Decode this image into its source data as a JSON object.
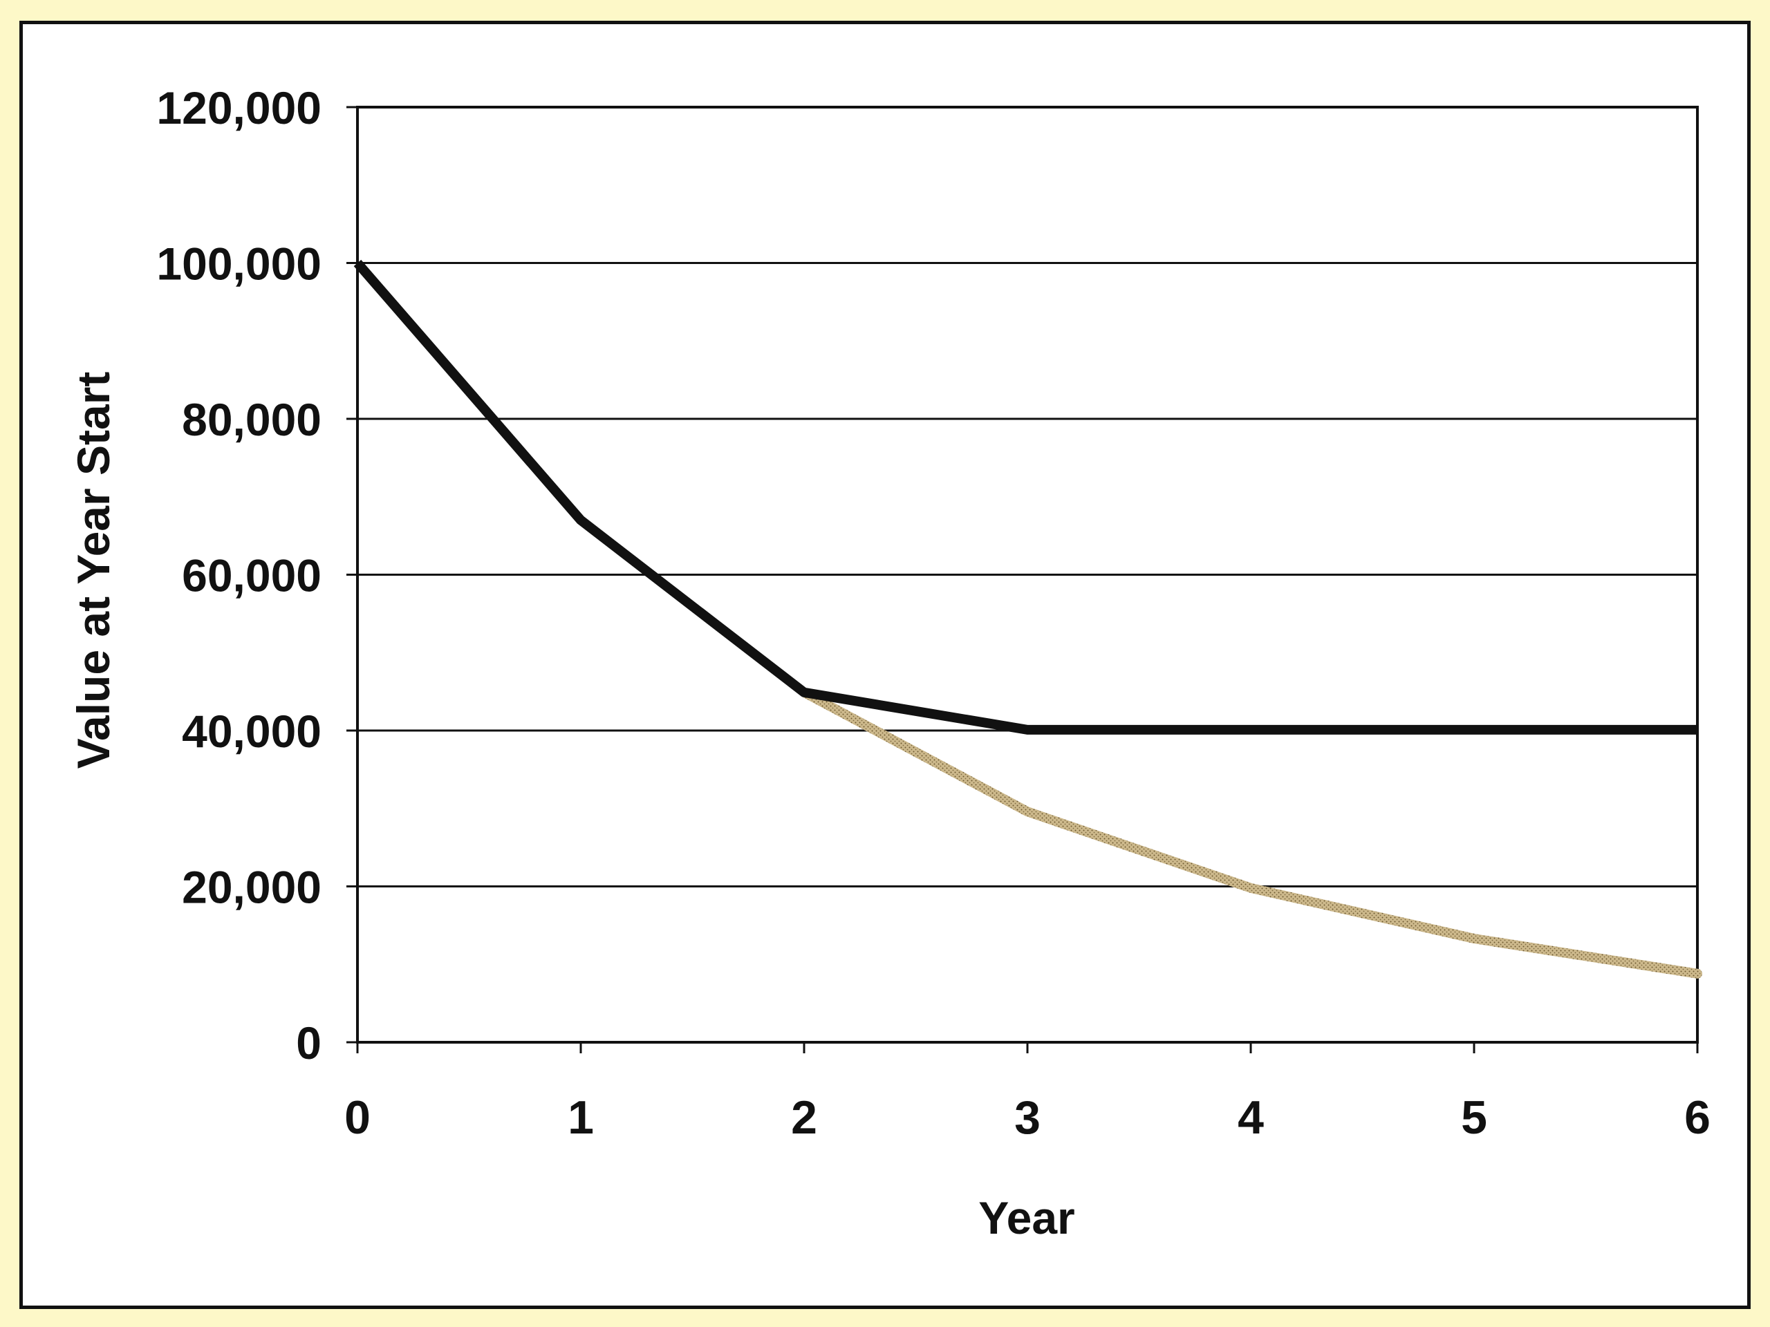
{
  "chart_data": {
    "type": "line",
    "xlabel": "Year",
    "ylabel": "Value at Year Start",
    "xlim": [
      0,
      6
    ],
    "ylim": [
      0,
      120000
    ],
    "x_ticks": [
      "0",
      "1",
      "2",
      "3",
      "4",
      "5",
      "6"
    ],
    "y_ticks": [
      "0",
      "20,000",
      "40,000",
      "60,000",
      "80,000",
      "100,000",
      "120,000"
    ],
    "grid": "horizontal",
    "legend": "none",
    "series": [
      {
        "x": [
          0,
          1,
          2,
          3,
          4,
          5,
          6
        ],
        "values": [
          100000,
          67000,
          44900,
          40100,
          40100,
          40100,
          40100
        ],
        "color": "#111111",
        "style": "solid"
      },
      {
        "x": [
          2,
          3,
          4,
          5,
          6
        ],
        "values": [
          44900,
          29600,
          19800,
          13300,
          8800
        ],
        "color": "#c8b58a",
        "style": "dotted-texture"
      }
    ]
  },
  "colors": {
    "page_background": "#fdf8c8",
    "plot_background": "#ffffff",
    "axis": "#111111"
  }
}
